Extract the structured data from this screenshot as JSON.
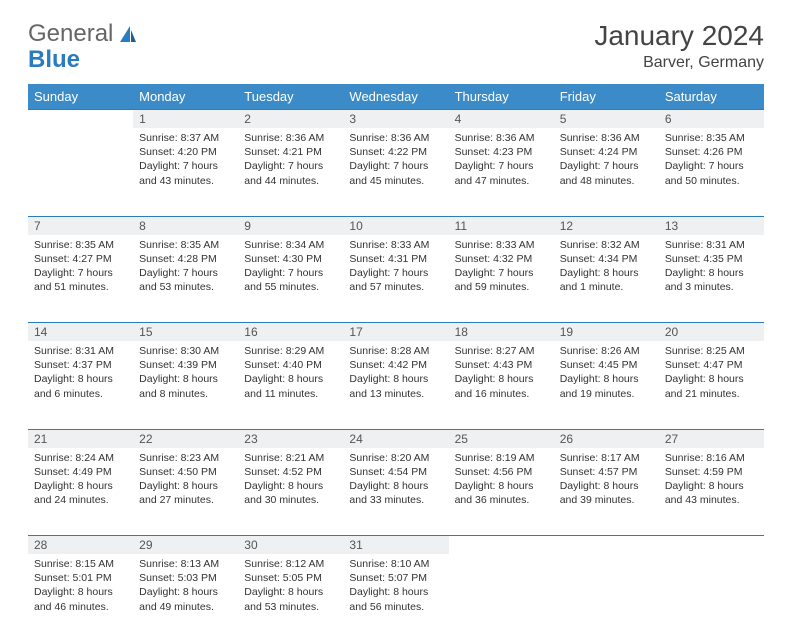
{
  "brand": {
    "part1": "General",
    "part2": "Blue"
  },
  "title": "January 2024",
  "location": "Barver, Germany",
  "colors": {
    "header_bg": "#3b8bc9",
    "header_fg": "#ffffff",
    "daynum_bg": "#eef0f2",
    "rule": "#2b7bbf",
    "text": "#333333"
  },
  "weekdays": [
    "Sunday",
    "Monday",
    "Tuesday",
    "Wednesday",
    "Thursday",
    "Friday",
    "Saturday"
  ],
  "weeks": [
    [
      {
        "n": "",
        "sr": "",
        "ss": "",
        "dl": ""
      },
      {
        "n": "1",
        "sr": "Sunrise: 8:37 AM",
        "ss": "Sunset: 4:20 PM",
        "dl": "Daylight: 7 hours and 43 minutes."
      },
      {
        "n": "2",
        "sr": "Sunrise: 8:36 AM",
        "ss": "Sunset: 4:21 PM",
        "dl": "Daylight: 7 hours and 44 minutes."
      },
      {
        "n": "3",
        "sr": "Sunrise: 8:36 AM",
        "ss": "Sunset: 4:22 PM",
        "dl": "Daylight: 7 hours and 45 minutes."
      },
      {
        "n": "4",
        "sr": "Sunrise: 8:36 AM",
        "ss": "Sunset: 4:23 PM",
        "dl": "Daylight: 7 hours and 47 minutes."
      },
      {
        "n": "5",
        "sr": "Sunrise: 8:36 AM",
        "ss": "Sunset: 4:24 PM",
        "dl": "Daylight: 7 hours and 48 minutes."
      },
      {
        "n": "6",
        "sr": "Sunrise: 8:35 AM",
        "ss": "Sunset: 4:26 PM",
        "dl": "Daylight: 7 hours and 50 minutes."
      }
    ],
    [
      {
        "n": "7",
        "sr": "Sunrise: 8:35 AM",
        "ss": "Sunset: 4:27 PM",
        "dl": "Daylight: 7 hours and 51 minutes."
      },
      {
        "n": "8",
        "sr": "Sunrise: 8:35 AM",
        "ss": "Sunset: 4:28 PM",
        "dl": "Daylight: 7 hours and 53 minutes."
      },
      {
        "n": "9",
        "sr": "Sunrise: 8:34 AM",
        "ss": "Sunset: 4:30 PM",
        "dl": "Daylight: 7 hours and 55 minutes."
      },
      {
        "n": "10",
        "sr": "Sunrise: 8:33 AM",
        "ss": "Sunset: 4:31 PM",
        "dl": "Daylight: 7 hours and 57 minutes."
      },
      {
        "n": "11",
        "sr": "Sunrise: 8:33 AM",
        "ss": "Sunset: 4:32 PM",
        "dl": "Daylight: 7 hours and 59 minutes."
      },
      {
        "n": "12",
        "sr": "Sunrise: 8:32 AM",
        "ss": "Sunset: 4:34 PM",
        "dl": "Daylight: 8 hours and 1 minute."
      },
      {
        "n": "13",
        "sr": "Sunrise: 8:31 AM",
        "ss": "Sunset: 4:35 PM",
        "dl": "Daylight: 8 hours and 3 minutes."
      }
    ],
    [
      {
        "n": "14",
        "sr": "Sunrise: 8:31 AM",
        "ss": "Sunset: 4:37 PM",
        "dl": "Daylight: 8 hours and 6 minutes."
      },
      {
        "n": "15",
        "sr": "Sunrise: 8:30 AM",
        "ss": "Sunset: 4:39 PM",
        "dl": "Daylight: 8 hours and 8 minutes."
      },
      {
        "n": "16",
        "sr": "Sunrise: 8:29 AM",
        "ss": "Sunset: 4:40 PM",
        "dl": "Daylight: 8 hours and 11 minutes."
      },
      {
        "n": "17",
        "sr": "Sunrise: 8:28 AM",
        "ss": "Sunset: 4:42 PM",
        "dl": "Daylight: 8 hours and 13 minutes."
      },
      {
        "n": "18",
        "sr": "Sunrise: 8:27 AM",
        "ss": "Sunset: 4:43 PM",
        "dl": "Daylight: 8 hours and 16 minutes."
      },
      {
        "n": "19",
        "sr": "Sunrise: 8:26 AM",
        "ss": "Sunset: 4:45 PM",
        "dl": "Daylight: 8 hours and 19 minutes."
      },
      {
        "n": "20",
        "sr": "Sunrise: 8:25 AM",
        "ss": "Sunset: 4:47 PM",
        "dl": "Daylight: 8 hours and 21 minutes."
      }
    ],
    [
      {
        "n": "21",
        "sr": "Sunrise: 8:24 AM",
        "ss": "Sunset: 4:49 PM",
        "dl": "Daylight: 8 hours and 24 minutes."
      },
      {
        "n": "22",
        "sr": "Sunrise: 8:23 AM",
        "ss": "Sunset: 4:50 PM",
        "dl": "Daylight: 8 hours and 27 minutes."
      },
      {
        "n": "23",
        "sr": "Sunrise: 8:21 AM",
        "ss": "Sunset: 4:52 PM",
        "dl": "Daylight: 8 hours and 30 minutes."
      },
      {
        "n": "24",
        "sr": "Sunrise: 8:20 AM",
        "ss": "Sunset: 4:54 PM",
        "dl": "Daylight: 8 hours and 33 minutes."
      },
      {
        "n": "25",
        "sr": "Sunrise: 8:19 AM",
        "ss": "Sunset: 4:56 PM",
        "dl": "Daylight: 8 hours and 36 minutes."
      },
      {
        "n": "26",
        "sr": "Sunrise: 8:17 AM",
        "ss": "Sunset: 4:57 PM",
        "dl": "Daylight: 8 hours and 39 minutes."
      },
      {
        "n": "27",
        "sr": "Sunrise: 8:16 AM",
        "ss": "Sunset: 4:59 PM",
        "dl": "Daylight: 8 hours and 43 minutes."
      }
    ],
    [
      {
        "n": "28",
        "sr": "Sunrise: 8:15 AM",
        "ss": "Sunset: 5:01 PM",
        "dl": "Daylight: 8 hours and 46 minutes."
      },
      {
        "n": "29",
        "sr": "Sunrise: 8:13 AM",
        "ss": "Sunset: 5:03 PM",
        "dl": "Daylight: 8 hours and 49 minutes."
      },
      {
        "n": "30",
        "sr": "Sunrise: 8:12 AM",
        "ss": "Sunset: 5:05 PM",
        "dl": "Daylight: 8 hours and 53 minutes."
      },
      {
        "n": "31",
        "sr": "Sunrise: 8:10 AM",
        "ss": "Sunset: 5:07 PM",
        "dl": "Daylight: 8 hours and 56 minutes."
      },
      {
        "n": "",
        "sr": "",
        "ss": "",
        "dl": ""
      },
      {
        "n": "",
        "sr": "",
        "ss": "",
        "dl": ""
      },
      {
        "n": "",
        "sr": "",
        "ss": "",
        "dl": ""
      }
    ]
  ]
}
